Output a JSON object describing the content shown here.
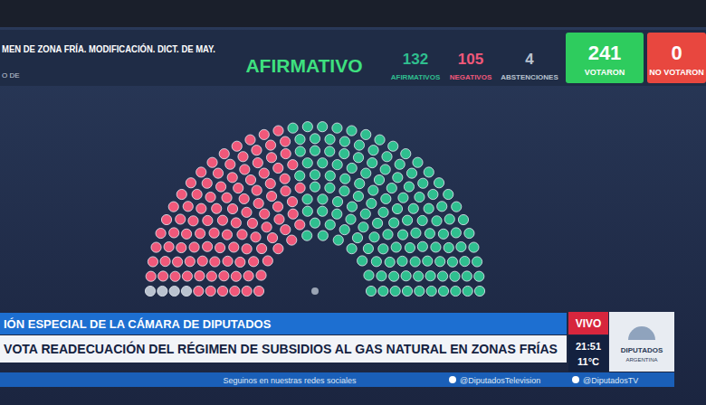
{
  "chart_data": {
    "type": "parliament",
    "title": "AFIRMATIVO",
    "categories": [
      "AFIRMATIVOS",
      "NEGATIVOS",
      "ABSTENCIONES"
    ],
    "values": [
      132,
      105,
      4
    ],
    "colors": [
      "#2fbf8f",
      "#f0587a",
      "#b9c2cf"
    ],
    "data_labels": true
  },
  "broadcast": {
    "motion": [
      "MEN DE ZONA FRÍA. MODIFICACIÓN. DICT. DE MAY.",
      "O DE"
    ],
    "totals": [
      {
        "value": 241,
        "label": "VOTARON"
      },
      {
        "value": 0,
        "label": "NO VOTARON"
      }
    ],
    "session": "IÓN ESPECIAL DE LA CÁMARA DE DIPUTADOS",
    "headline": "VOTA READECUACIÓN DEL RÉGIMEN DE SUBSIDIOS AL GAS NATURAL EN ZONAS FRÍAS",
    "live": "VIVO",
    "time": "21:51",
    "temperature": "11°C",
    "logo": [
      "DIPUTADOS",
      "ARGENTINA"
    ],
    "ticker": [
      "Seguinos en nuestras redes sociales",
      "@DiputadosTelevision",
      "@DiputadosTV"
    ]
  }
}
